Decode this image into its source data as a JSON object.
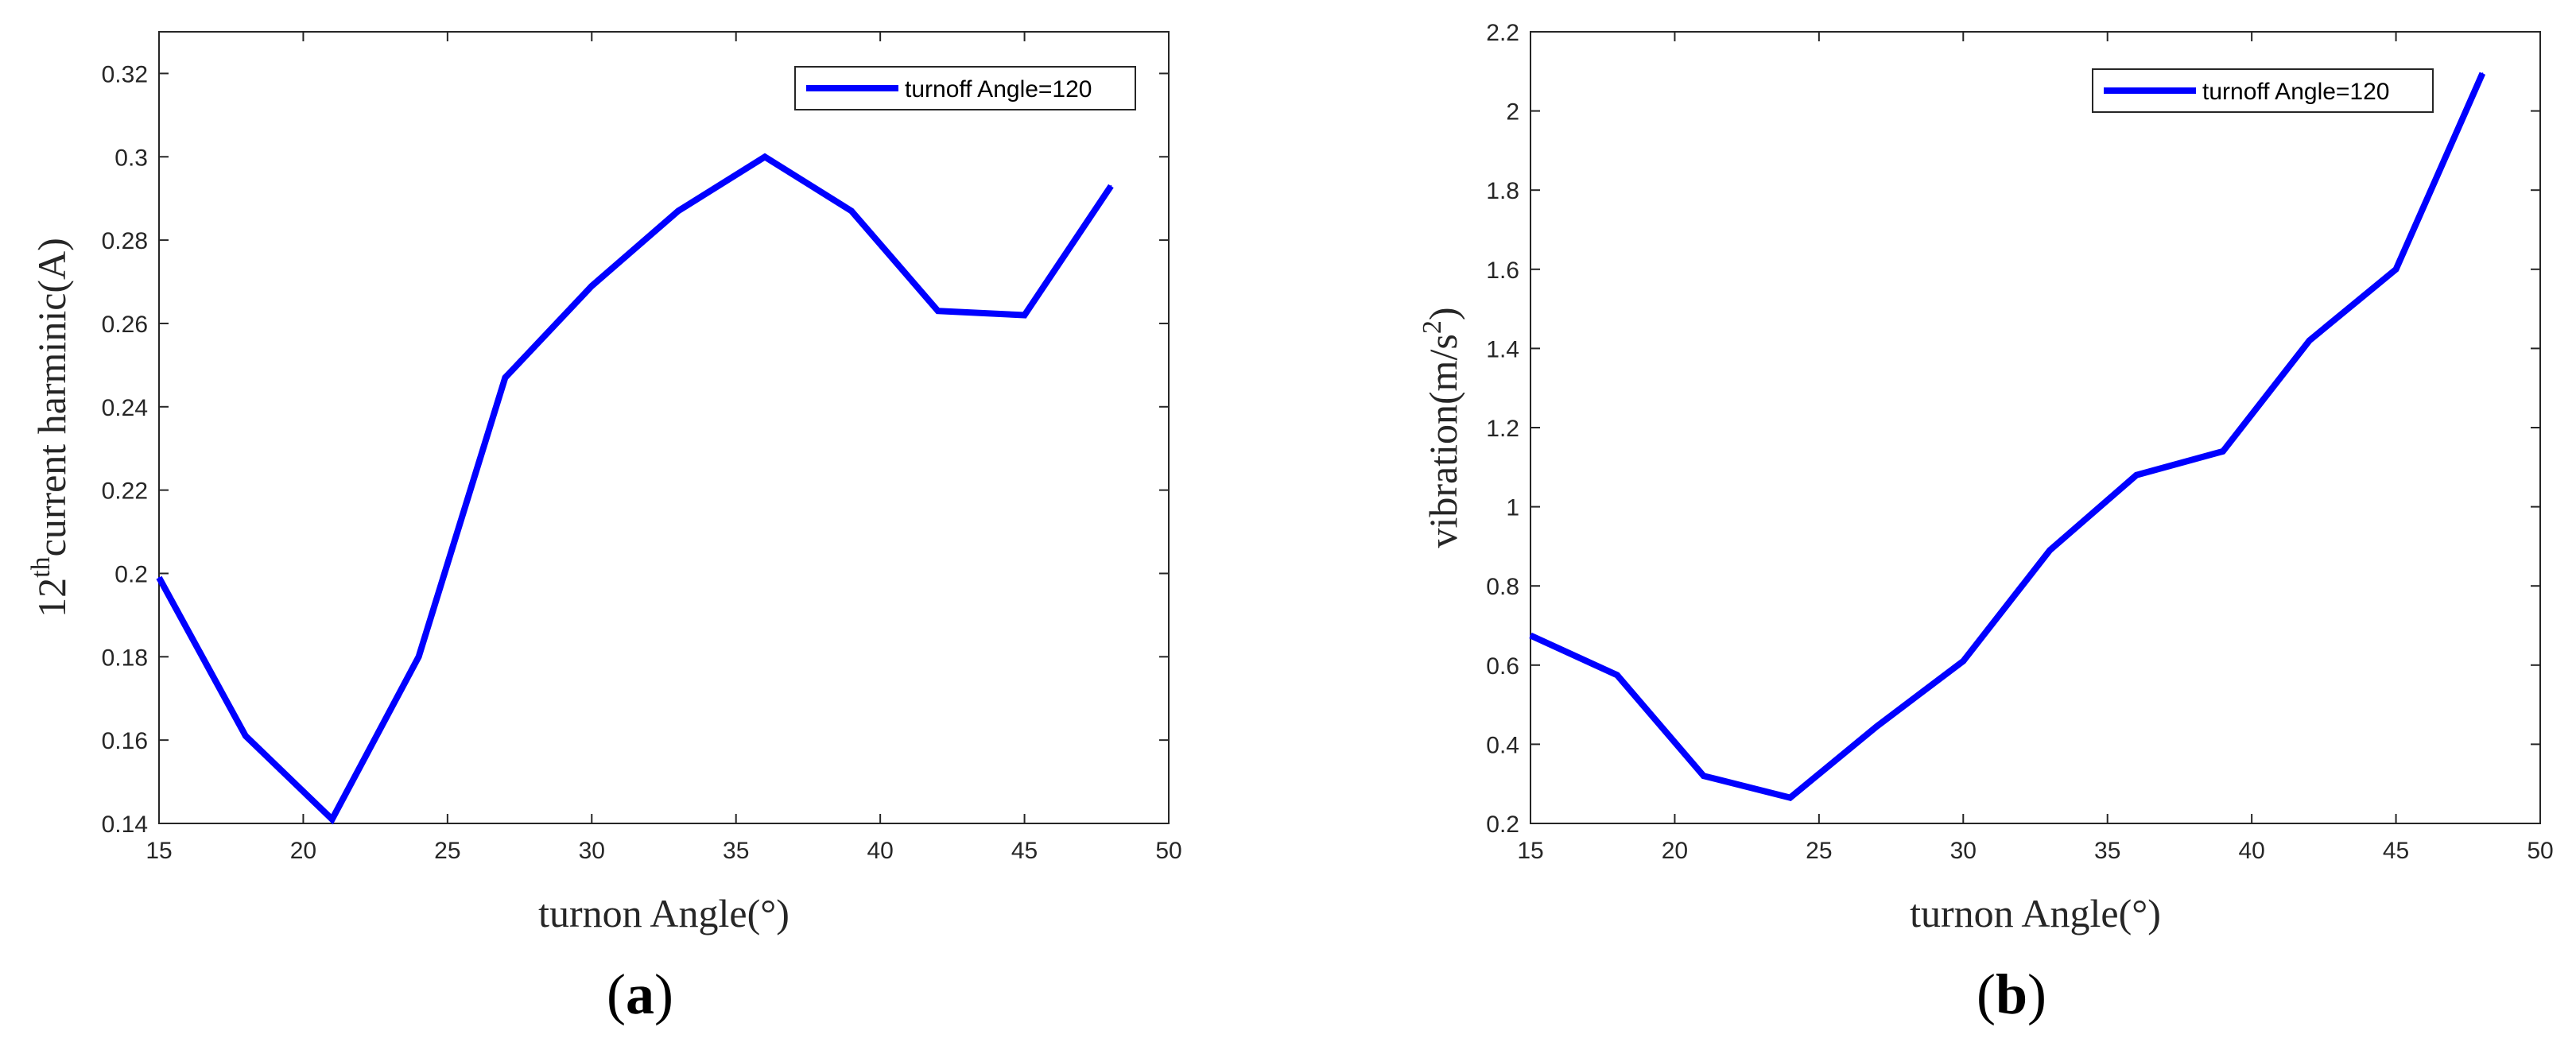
{
  "chart_data": [
    {
      "type": "line",
      "panel": "a",
      "caption_open": "(",
      "caption_letter": "a",
      "caption_close": ")",
      "x": [
        15,
        18,
        21,
        24,
        27,
        30,
        33,
        36,
        39,
        42,
        45,
        48
      ],
      "series": [
        {
          "name": "turnoff Angle=120",
          "color": "#0000ff",
          "values": [
            0.199,
            0.161,
            0.141,
            0.18,
            0.247,
            0.269,
            0.287,
            0.3,
            0.287,
            0.263,
            0.262,
            0.293
          ]
        }
      ],
      "xlim": [
        15,
        50
      ],
      "ylim": [
        0.14,
        0.33
      ],
      "xticks": [
        15,
        20,
        25,
        30,
        35,
        40,
        45,
        50
      ],
      "xtick_labels": [
        "15",
        "20",
        "25",
        "30",
        "35",
        "40",
        "45",
        "50"
      ],
      "yticks": [
        0.14,
        0.16,
        0.18,
        0.2,
        0.22,
        0.24,
        0.26,
        0.28,
        0.3,
        0.32
      ],
      "ytick_labels": [
        "0.14",
        "0.16",
        "0.18",
        "0.2",
        "0.22",
        "0.24",
        "0.26",
        "0.28",
        "0.3",
        "0.32"
      ],
      "xlabel": "turnon Angle(°)",
      "ylabel_pre": "12",
      "ylabel_sup": "th",
      "ylabel_post": "current harminic(A)",
      "legend_position": "top-right",
      "grid": false
    },
    {
      "type": "line",
      "panel": "b",
      "caption_open": "(",
      "caption_letter": "b",
      "caption_close": ")",
      "x": [
        15,
        18,
        21,
        24,
        27,
        30,
        33,
        36,
        39,
        42,
        45,
        48
      ],
      "series": [
        {
          "name": "turnoff Angle=120",
          "color": "#0000ff",
          "values": [
            0.675,
            0.575,
            0.32,
            0.265,
            0.445,
            0.61,
            0.89,
            1.08,
            1.14,
            1.42,
            1.6,
            2.095
          ]
        }
      ],
      "xlim": [
        15,
        50
      ],
      "ylim": [
        0.2,
        2.2
      ],
      "xticks": [
        15,
        20,
        25,
        30,
        35,
        40,
        45,
        50
      ],
      "xtick_labels": [
        "15",
        "20",
        "25",
        "30",
        "35",
        "40",
        "45",
        "50"
      ],
      "yticks": [
        0.2,
        0.4,
        0.6,
        0.8,
        1.0,
        1.2,
        1.4,
        1.6,
        1.8,
        2.0,
        2.2
      ],
      "ytick_labels": [
        "0.2",
        "0.4",
        "0.6",
        "0.8",
        "1",
        "1.2",
        "1.4",
        "1.6",
        "1.8",
        "2",
        "2.2"
      ],
      "xlabel": "turnon Angle(°)",
      "ylabel_pre": "vibration(m/s",
      "ylabel_sup": "2",
      "ylabel_post": ")",
      "legend_position": "top-right",
      "grid": false
    }
  ]
}
